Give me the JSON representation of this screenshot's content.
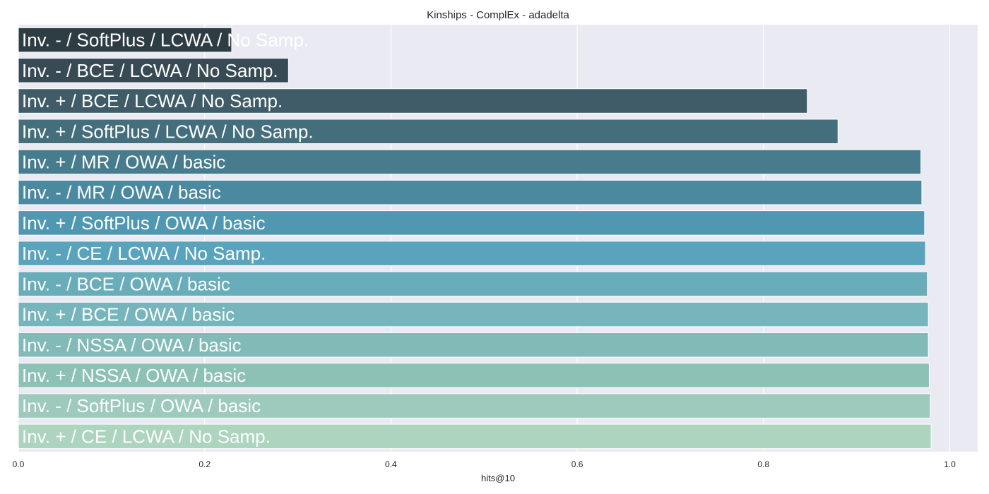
{
  "chart_data": {
    "type": "bar",
    "orientation": "horizontal",
    "title": "Kinships - ComplEx - adadelta",
    "xlabel": "hits@10",
    "ylabel": "",
    "xlim": [
      0.0,
      1.03
    ],
    "xticks": [
      0.0,
      0.2,
      0.4,
      0.6,
      0.8,
      1.0
    ],
    "xtick_labels": [
      "0.0",
      "0.2",
      "0.4",
      "0.6",
      "0.8",
      "1.0"
    ],
    "grid": true,
    "background_color": "#eaeaf2",
    "categories": [
      "Inv. - / SoftPlus / LCWA / No Samp.",
      "Inv. - / BCE / LCWA / No Samp.",
      "Inv. + / BCE / LCWA / No Samp.",
      "Inv. + / SoftPlus / LCWA / No Samp.",
      "Inv. + / MR / OWA / basic",
      "Inv. - / MR / OWA / basic",
      "Inv. + / SoftPlus / OWA / basic",
      "Inv. - / CE / LCWA / No Samp.",
      "Inv. - / BCE / OWA / basic",
      "Inv. + / BCE / OWA / basic",
      "Inv. - / NSSA / OWA / basic",
      "Inv. + / NSSA / OWA / basic",
      "Inv. - / SoftPlus / OWA / basic",
      "Inv. + / CE / LCWA / No Samp."
    ],
    "values": [
      0.229,
      0.29,
      0.847,
      0.88,
      0.969,
      0.97,
      0.973,
      0.974,
      0.976,
      0.977,
      0.977,
      0.978,
      0.979,
      0.98
    ],
    "colors": [
      "#2e3d44",
      "#384b55",
      "#3f5c68",
      "#456e7d",
      "#477b8e",
      "#4b89a1",
      "#5098b2",
      "#5aa3bc",
      "#69adbb",
      "#76b5bb",
      "#82bab7",
      "#8dc1b6",
      "#9dcabc",
      "#acd4be"
    ]
  }
}
